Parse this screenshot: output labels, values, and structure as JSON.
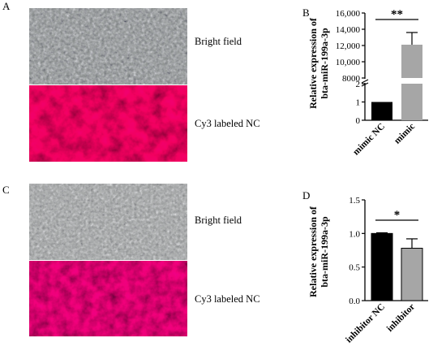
{
  "figure": {
    "panels": {
      "A": {
        "letter": "A",
        "captions": [
          "Bright field",
          "Cy3 labeled NC"
        ]
      },
      "B": {
        "letter": "B"
      },
      "C": {
        "letter": "C",
        "captions": [
          "Bright field",
          "Cy3 labeled NC"
        ]
      },
      "D": {
        "letter": "D"
      }
    }
  },
  "chart_data": [
    {
      "type": "bar",
      "panel": "B",
      "ylabel": "Relative expression of bta-miR-199a-3p",
      "categories": [
        "mimic NC",
        "mimic"
      ],
      "series": [
        {
          "values": [
            1.0,
            12100
          ],
          "errors": [
            0.02,
            1500
          ]
        }
      ],
      "colors": [
        "#000000",
        "#a6a6a6"
      ],
      "axis_break": {
        "lower_range": [
          0,
          2
        ],
        "upper_range": [
          8000,
          16000
        ]
      },
      "yticks_lower": [
        "0",
        "1",
        "2"
      ],
      "yticks_upper": [
        "8000",
        "10,000",
        "12,000",
        "14,000",
        "16,000"
      ],
      "significance": "**",
      "grid": false
    },
    {
      "type": "bar",
      "panel": "D",
      "ylabel": "Relative expression of bta-miR-199a-3p",
      "categories": [
        "inhibitor NC",
        "inhibitor"
      ],
      "series": [
        {
          "values": [
            1.0,
            0.78
          ],
          "errors": [
            0.01,
            0.14
          ]
        }
      ],
      "colors": [
        "#000000",
        "#a6a6a6"
      ],
      "ylim": [
        0,
        1.5
      ],
      "yticks": [
        "0.0",
        "0.5",
        "1.0",
        "1.5"
      ],
      "significance": "*",
      "grid": false
    }
  ]
}
